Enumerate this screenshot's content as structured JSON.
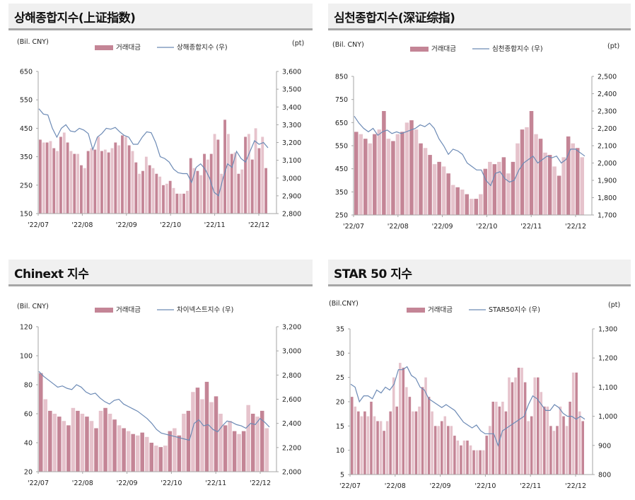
{
  "colors": {
    "bar_dark": "#c48596",
    "bar_light": "#e6c3cc",
    "line": "#6c8ab5",
    "axis": "#a6a6a6"
  },
  "chart_data": [
    {
      "type": "bar+line",
      "title": "상해종합지수(上证指数)",
      "left_unit": "(Bil.  CNY)",
      "right_unit": "(pt)",
      "legend": [
        "거래대금",
        "상해종합지수 (우)"
      ],
      "legend_placement": "top-center",
      "x_ticks": [
        "'22/07",
        "'22/08",
        "'22/09",
        "'22/10",
        "'22/11",
        "'22/12"
      ],
      "ylim_left": [
        150,
        650
      ],
      "yticks_left": [
        "150",
        "250",
        "350",
        "450",
        "550",
        "650"
      ],
      "ylim_right": [
        2800,
        3600
      ],
      "yticks_right": [
        "2,800",
        "2,900",
        "3,000",
        "3,100",
        "3,200",
        "3,300",
        "3,400",
        "3,500",
        "3,600"
      ],
      "bar_values": [
        410,
        400,
        400,
        405,
        380,
        370,
        420,
        435,
        400,
        370,
        360,
        360,
        320,
        310,
        370,
        380,
        375,
        420,
        370,
        375,
        365,
        380,
        400,
        390,
        425,
        420,
        390,
        370,
        330,
        290,
        300,
        350,
        320,
        310,
        290,
        280,
        250,
        255,
        265,
        240,
        220,
        220,
        220,
        230,
        345,
        310,
        300,
        285,
        360,
        340,
        360,
        430,
        410,
        290,
        480,
        430,
        360,
        365,
        290,
        305,
        420,
        430,
        340,
        450,
        380,
        420,
        310
      ],
      "line_values": [
        3390,
        3360,
        3355,
        3280,
        3230,
        3280,
        3300,
        3265,
        3260,
        3280,
        3270,
        3250,
        3160,
        3230,
        3250,
        3280,
        3275,
        3285,
        3260,
        3240,
        3230,
        3190,
        3190,
        3230,
        3260,
        3255,
        3200,
        3120,
        3110,
        3090,
        3050,
        3030,
        3025,
        3025,
        2975,
        3060,
        3080,
        3050,
        3000,
        2920,
        2900,
        3000,
        3080,
        3060,
        3150,
        3110,
        3090,
        3150,
        3210,
        3190,
        3200,
        3170
      ]
    },
    {
      "type": "bar+line",
      "title": "심천종합지수(深证综指)",
      "left_unit": "(Bil.  CNY)",
      "right_unit": "(pt)",
      "legend": [
        "거래대금",
        "심천종합지수 (우)"
      ],
      "legend_placement": "top-center",
      "x_ticks": [
        "'22/07",
        "'22/08",
        "'22/09",
        "'22/10",
        "'22/11",
        "'22/12"
      ],
      "ylim_left": [
        250,
        850
      ],
      "yticks_left": [
        "250",
        "350",
        "450",
        "550",
        "650",
        "750",
        "850"
      ],
      "ylim_right": [
        1700,
        2500
      ],
      "yticks_right": [
        "1,700",
        "1,800",
        "1,900",
        "2,000",
        "2,100",
        "2,200",
        "2,300",
        "2,400",
        "2,500"
      ],
      "bar_values": [
        610,
        600,
        580,
        560,
        600,
        620,
        700,
        580,
        570,
        600,
        610,
        650,
        660,
        620,
        560,
        540,
        510,
        470,
        480,
        460,
        430,
        380,
        370,
        360,
        340,
        320,
        320,
        340,
        450,
        480,
        470,
        480,
        500,
        430,
        480,
        560,
        620,
        630,
        700,
        600,
        580,
        520,
        510,
        460,
        420,
        500,
        590,
        560,
        540,
        500
      ],
      "line_values": [
        2270,
        2230,
        2200,
        2180,
        2200,
        2160,
        2180,
        2190,
        2170,
        2180,
        2170,
        2180,
        2190,
        2200,
        2220,
        2210,
        2230,
        2200,
        2140,
        2100,
        2050,
        2080,
        2070,
        2050,
        2000,
        1980,
        1960,
        1960,
        1900,
        1870,
        1940,
        1950,
        1910,
        1890,
        1900,
        1960,
        2000,
        2020,
        2040,
        2000,
        2020,
        2040,
        2030,
        2040,
        2000,
        2020,
        2080,
        2080,
        2060,
        2040
      ]
    },
    {
      "type": "bar+line",
      "title": "Chinext 지수",
      "left_unit": "(Bil.  CNY)",
      "right_unit": "",
      "legend": [
        "거래대금",
        "차이넥스트지수 (우)"
      ],
      "legend_placement": "top-center",
      "x_ticks": [
        "'22/07",
        "'22/08",
        "'22/09",
        "'22/10",
        "'22/11",
        "'22/12"
      ],
      "ylim_left": [
        20,
        120
      ],
      "yticks_left": [
        "20",
        "40",
        "60",
        "80",
        "100",
        "120"
      ],
      "ylim_right": [
        2000,
        3200
      ],
      "yticks_right": [
        "2,000",
        "2,200",
        "2,400",
        "2,600",
        "2,800",
        "3,000",
        "3,200"
      ],
      "bar_values": [
        88,
        70,
        62,
        60,
        58,
        55,
        52,
        64,
        62,
        60,
        58,
        55,
        50,
        62,
        64,
        60,
        56,
        52,
        50,
        48,
        46,
        45,
        47,
        44,
        40,
        38,
        37,
        38,
        48,
        50,
        45,
        60,
        62,
        75,
        78,
        70,
        82,
        68,
        72,
        60,
        52,
        55,
        48,
        46,
        48,
        66,
        60,
        58,
        62,
        50
      ],
      "line_values": [
        2830,
        2790,
        2760,
        2730,
        2700,
        2710,
        2690,
        2680,
        2720,
        2700,
        2660,
        2640,
        2650,
        2610,
        2580,
        2560,
        2590,
        2600,
        2560,
        2540,
        2520,
        2500,
        2470,
        2440,
        2400,
        2350,
        2320,
        2310,
        2300,
        2290,
        2280,
        2270,
        2260,
        2400,
        2430,
        2380,
        2390,
        2350,
        2330,
        2380,
        2420,
        2410,
        2390,
        2380,
        2360,
        2400,
        2390,
        2440,
        2410,
        2370
      ]
    },
    {
      "type": "bar+line",
      "title": "STAR 50 지수",
      "left_unit": "(Bil.CNY)",
      "right_unit": "(pt)",
      "legend": [
        "거래대금",
        "STAR50지수 (우)"
      ],
      "legend_placement": "top-center",
      "x_ticks": [
        "'22/07",
        "'22/08",
        "'22/09",
        "'22/10",
        "'22/11",
        "'22/12"
      ],
      "ylim_left": [
        5,
        35
      ],
      "yticks_left": [
        "5",
        "10",
        "15",
        "20",
        "25",
        "30",
        "35"
      ],
      "ylim_right": [
        800,
        1300
      ],
      "yticks_right": [
        "800",
        "900",
        "1,000",
        "1,100",
        "1,200",
        "1,300"
      ],
      "bar_values": [
        21,
        19,
        18,
        17,
        18,
        17,
        20,
        17,
        16,
        16,
        14,
        16,
        18,
        25,
        19,
        28,
        27,
        23,
        21,
        18,
        18,
        19,
        23,
        25,
        21,
        18,
        15,
        15,
        16,
        17,
        15,
        15,
        13,
        12,
        11,
        12,
        12,
        11,
        10,
        10,
        10,
        10,
        13,
        15,
        20,
        20,
        19,
        20,
        18,
        25,
        24,
        25,
        27,
        27,
        24,
        16,
        17,
        25,
        25,
        22,
        19,
        19,
        15,
        14,
        15,
        19,
        17,
        15,
        20,
        26,
        26,
        18,
        16
      ],
      "line_values": [
        1110,
        1100,
        1050,
        1070,
        1070,
        1060,
        1090,
        1080,
        1100,
        1090,
        1110,
        1160,
        1160,
        1170,
        1140,
        1130,
        1100,
        1090,
        1060,
        1050,
        1040,
        1030,
        1040,
        1030,
        1020,
        1000,
        980,
        970,
        960,
        970,
        950,
        940,
        940,
        940,
        900,
        950,
        960,
        970,
        980,
        990,
        1000,
        1040,
        1070,
        1060,
        1040,
        1020,
        1020,
        1040,
        1030,
        1010,
        1000,
        1000,
        990,
        1000,
        990
      ]
    }
  ]
}
